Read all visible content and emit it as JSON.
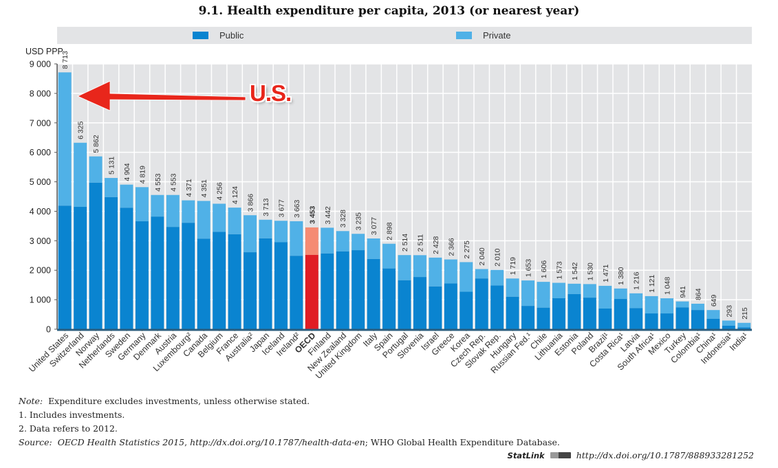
{
  "title": "9.1.  Health expenditure per capita, 2013 (or nearest year)",
  "colors": {
    "public": "#0a84d0",
    "private": "#50b1e7",
    "oecd_public": "#e01d24",
    "oecd_private": "#f58b73",
    "plot_bg": "#e3e4e6",
    "annotation": "#e8261b"
  },
  "annotation": {
    "text": "U.S.",
    "points_to": "United States"
  },
  "chart_data": {
    "type": "bar",
    "stacked": true,
    "title": "9.1.  Health expenditure per capita, 2013 (or nearest year)",
    "ylabel": "USD PPP",
    "xlabel": "",
    "ylim": [
      0,
      9000
    ],
    "yticks": [
      0,
      1000,
      2000,
      3000,
      4000,
      5000,
      6000,
      7000,
      8000,
      9000
    ],
    "ytick_labels": [
      "0",
      "1 000",
      "2 000",
      "3 000",
      "4 000",
      "5 000",
      "6 000",
      "7 000",
      "8 000",
      "9 000"
    ],
    "grid": true,
    "legend": {
      "placement": "top",
      "entries": [
        "Public",
        "Private"
      ]
    },
    "highlight_category": "OECD",
    "categories": [
      "United States",
      "Switzerland",
      "Norway",
      "Netherlands",
      "Sweden",
      "Germany",
      "Denmark",
      "Austria",
      "Luxembourg²",
      "Canada",
      "Belgium",
      "France",
      "Australia²",
      "Japan",
      "Iceland",
      "Ireland²",
      "OECD",
      "Finland",
      "New Zealand",
      "United Kingdom",
      "Italy",
      "Spain",
      "Portugal",
      "Slovenia",
      "Israel",
      "Greece",
      "Korea",
      "Czech Rep.",
      "Slovak Rep.",
      "Hungary",
      "Russian Fed.¹",
      "Chile",
      "Lithuania",
      "Estonia",
      "Poland",
      "Brazil¹",
      "Costa Rica¹",
      "Latvia",
      "South Africa¹",
      "Mexico",
      "Turkey",
      "Colombia¹",
      "China¹",
      "Indonesia¹",
      "India¹"
    ],
    "totals": [
      8713,
      6325,
      5862,
      5131,
      4904,
      4819,
      4553,
      4553,
      4371,
      4351,
      4256,
      4124,
      3866,
      3713,
      3677,
      3663,
      3453,
      3442,
      3328,
      3235,
      3077,
      2898,
      2514,
      2511,
      2428,
      2366,
      2275,
      2040,
      2010,
      1719,
      1653,
      1606,
      1573,
      1542,
      1530,
      1471,
      1380,
      1216,
      1121,
      1048,
      941,
      864,
      649,
      293,
      215
    ],
    "total_labels": [
      "8 713",
      "6 325",
      "5 862",
      "5 131",
      "4 904",
      "4 819",
      "4 553",
      "4 553",
      "4 371",
      "4 351",
      "4 256",
      "4 124",
      "3 866",
      "3 713",
      "3 677",
      "3 663",
      "3 453",
      "3 442",
      "3 328",
      "3 235",
      "3 077",
      "2 898",
      "2 514",
      "2 511",
      "2 428",
      "2 366",
      "2 275",
      "2 040",
      "2 010",
      "1 719",
      "1 653",
      "1 606",
      "1 573",
      "1 542",
      "1 530",
      "1 471",
      "1 380",
      "1 216",
      "1 121",
      "1 048",
      "941",
      "864",
      "649",
      "293",
      "215"
    ],
    "series": [
      {
        "name": "Public",
        "values": [
          4190,
          4150,
          4970,
          4480,
          4120,
          3660,
          3820,
          3470,
          3610,
          3070,
          3300,
          3220,
          2610,
          3080,
          2950,
          2490,
          2520,
          2570,
          2640,
          2680,
          2380,
          2060,
          1660,
          1770,
          1450,
          1550,
          1270,
          1720,
          1480,
          1100,
          790,
          730,
          1050,
          1190,
          1070,
          700,
          1025,
          715,
          535,
          535,
          740,
          650,
          350,
          120,
          60
        ]
      },
      {
        "name": "Private",
        "values": [
          4523,
          2175,
          892,
          651,
          784,
          1159,
          733,
          1083,
          761,
          1281,
          956,
          904,
          1256,
          633,
          727,
          1173,
          933,
          872,
          688,
          555,
          697,
          838,
          854,
          741,
          978,
          816,
          1005,
          320,
          530,
          619,
          863,
          876,
          523,
          352,
          460,
          771,
          355,
          501,
          586,
          513,
          201,
          214,
          299,
          173,
          155
        ]
      }
    ]
  },
  "notes": {
    "note_label": "Note:",
    "note_text": "Expenditure excludes investments, unless otherwise stated.",
    "footnote1": "1.  Includes investments.",
    "footnote2": "2.  Data refers to 2012.",
    "source_label": "Source:",
    "source_italic1": "OECD Health Statistics 2015",
    "source_sep1": ", ",
    "source_italic2": "http://dx.doi.org/10.1787/health-data-en",
    "source_rest": "; WHO Global Health Expenditure Database."
  },
  "statlink": {
    "label": "StatLink",
    "url": "http://dx.doi.org/10.1787/888933281252"
  }
}
